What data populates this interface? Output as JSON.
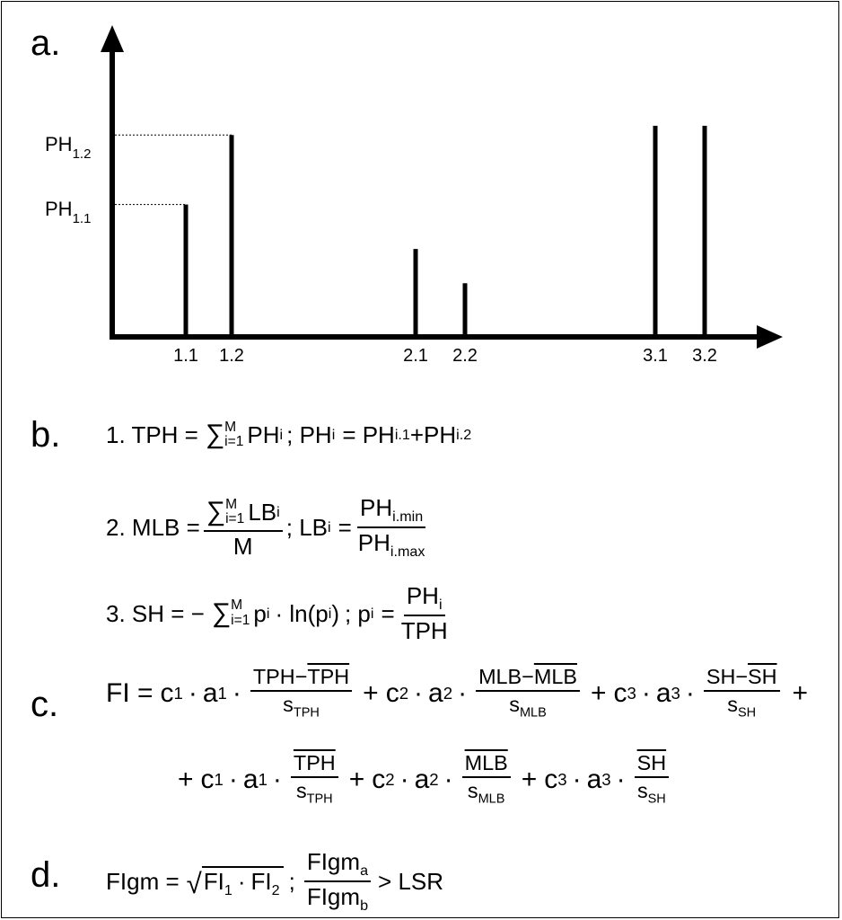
{
  "labels": {
    "a": "a.",
    "b": "b.",
    "c": "c.",
    "d": "d.",
    "ph12": "PH",
    "ph12_sub": "1.2",
    "ph11": "PH",
    "ph11_sub": "1.1"
  },
  "chart_data": {
    "type": "bar",
    "categories": [
      "1.1",
      "1.2",
      "2.1",
      "2.2",
      "3.1",
      "3.2"
    ],
    "values": [
      140,
      215,
      92,
      55,
      225,
      225
    ],
    "ylim": [
      0,
      320
    ]
  },
  "equations": {
    "b1_prefix": "1. TPH =",
    "b1_sum_top": "M",
    "b1_sum_bottom": "i=1",
    "b1_term": "PH",
    "b1_term_sub": "i",
    "b1_rest_a": "; PH",
    "b1_rest_a_sub": "i",
    "b1_rest_b": "= PH",
    "b1_rest_b_sub": "i.1",
    "b1_rest_c": "+PH",
    "b1_rest_c_sub": "i.2",
    "b2_prefix": "2. MLB =",
    "b2_num_sum_top": "M",
    "b2_num_sum_bottom": "i=1",
    "b2_num_term": "LB",
    "b2_num_term_sub": "i",
    "b2_den": "M",
    "b2_mid": "; LB",
    "b2_mid_sub": "i",
    "b2_eq": "=",
    "b2_frac_num": "PH",
    "b2_frac_num_sub": "i.min",
    "b2_frac_den": "PH",
    "b2_frac_den_sub": "i.max",
    "b3_prefix": "3. SH = −",
    "b3_sum_top": "M",
    "b3_sum_bottom": "i=1",
    "b3_term": "p",
    "b3_term_sub": "i",
    "b3_ln": "· ln(p",
    "b3_ln_sub": "i",
    "b3_ln_close": ")",
    "b3_mid": "; p",
    "b3_mid_sub": "i",
    "b3_eq": "=",
    "b3_frac_num": "PH",
    "b3_frac_num_sub": "i",
    "b3_frac_den": "TPH",
    "c_fi": "FI =",
    "c_c": "c",
    "c_a": "a",
    "c_dot": "·",
    "c_plus": "+",
    "c_sub1": "1",
    "c_sub2": "2",
    "c_sub3": "3",
    "c_tph": "TPH",
    "c_mlb": "MLB",
    "c_sh": "SH",
    "c_minus": "−",
    "c_s": "s",
    "c_s_tph": "TPH",
    "c_s_mlb": "MLB",
    "c_s_sh": "SH",
    "d_prefix": "FIgm =",
    "d_fi": "FI",
    "d_sub1": "1",
    "d_sub2": "2",
    "d_dot": "·",
    "d_semi": ";",
    "d_num": "FIgm",
    "d_num_sub": "a",
    "d_den": "FIgm",
    "d_den_sub": "b",
    "d_rest": "> LSR"
  }
}
